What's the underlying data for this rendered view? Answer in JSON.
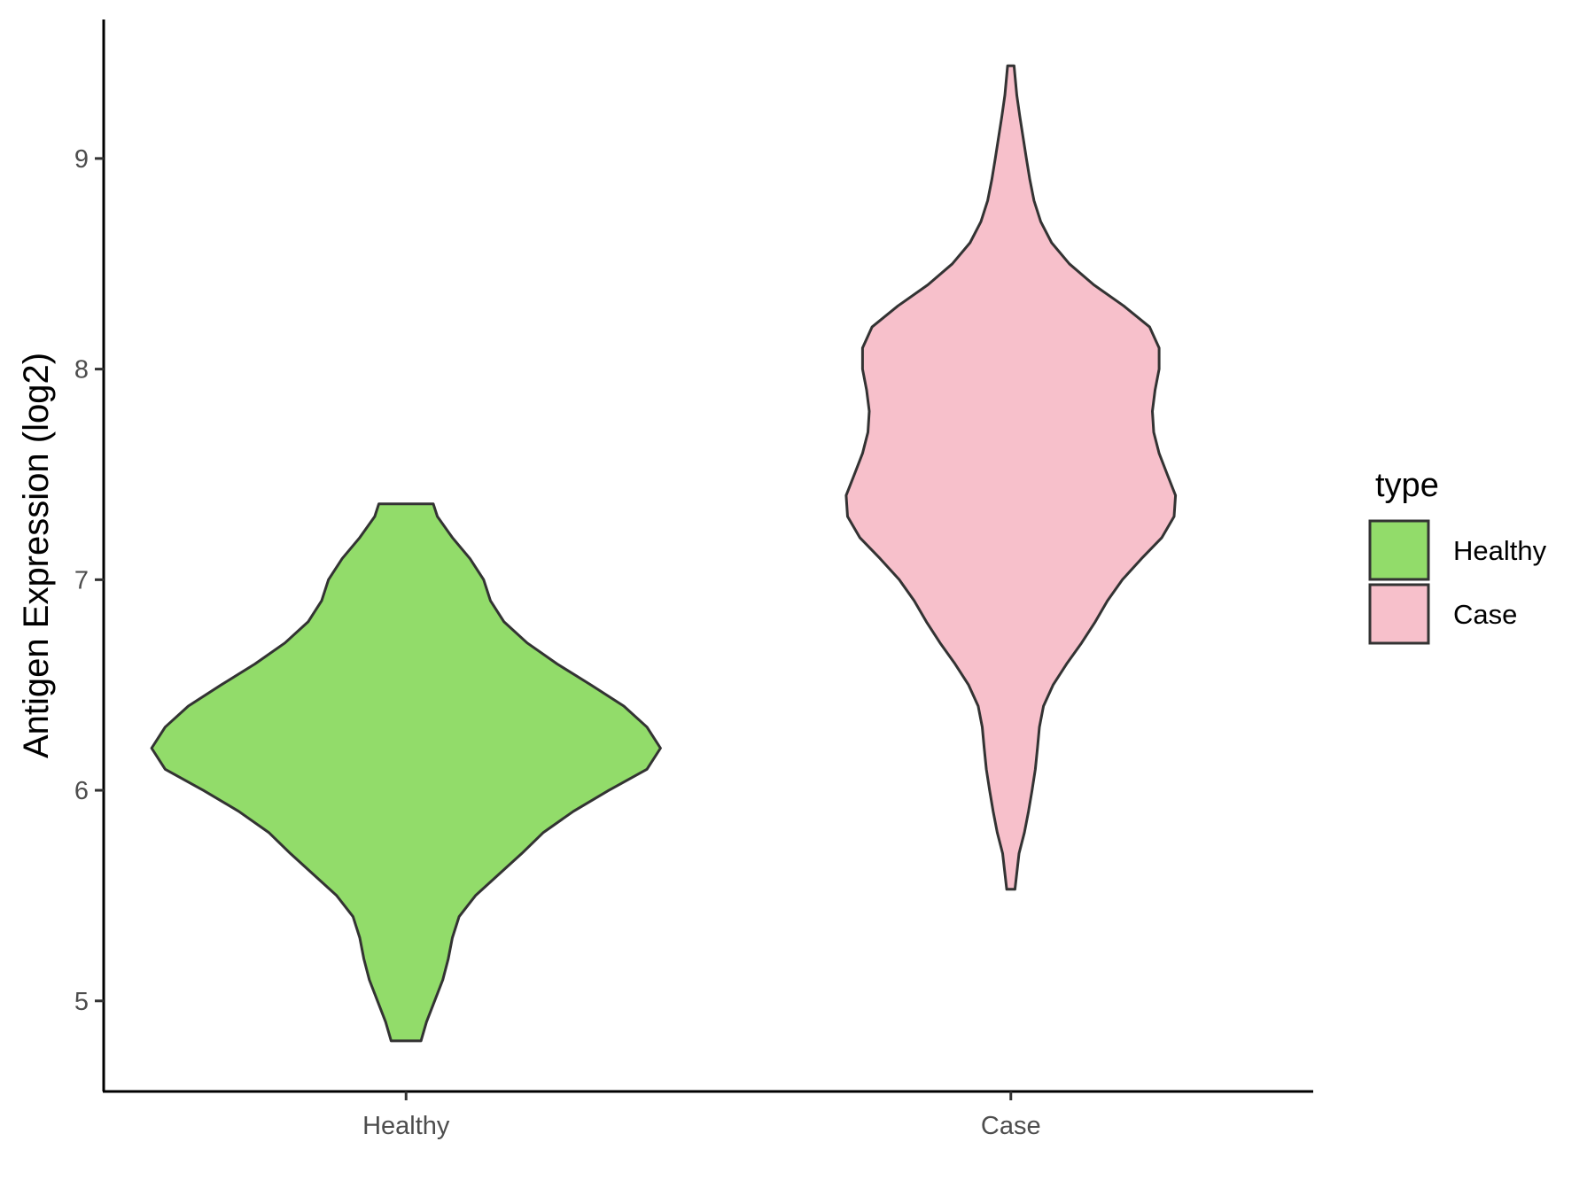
{
  "chart_data": {
    "type": "violin",
    "title": "",
    "xlabel": "",
    "ylabel": "Antigen Expression (log2)",
    "categories": [
      "Healthy",
      "Case"
    ],
    "ylim": [
      4.57,
      9.66
    ],
    "yticks": [
      5,
      6,
      7,
      8,
      9
    ],
    "grid": false,
    "legend": {
      "title": "type",
      "position": "right",
      "entries": [
        "Healthy",
        "Case"
      ]
    },
    "series": [
      {
        "name": "Healthy",
        "color": "#92DC6A",
        "min": 4.81,
        "max": 7.36,
        "density_profile": [
          [
            4.81,
            0.055
          ],
          [
            4.9,
            0.075
          ],
          [
            5.0,
            0.105
          ],
          [
            5.1,
            0.135
          ],
          [
            5.2,
            0.155
          ],
          [
            5.3,
            0.17
          ],
          [
            5.4,
            0.195
          ],
          [
            5.5,
            0.255
          ],
          [
            5.6,
            0.34
          ],
          [
            5.7,
            0.425
          ],
          [
            5.8,
            0.505
          ],
          [
            5.9,
            0.615
          ],
          [
            6.0,
            0.745
          ],
          [
            6.1,
            0.885
          ],
          [
            6.2,
            0.935
          ],
          [
            6.3,
            0.885
          ],
          [
            6.4,
            0.8
          ],
          [
            6.5,
            0.68
          ],
          [
            6.6,
            0.555
          ],
          [
            6.7,
            0.445
          ],
          [
            6.8,
            0.36
          ],
          [
            6.9,
            0.31
          ],
          [
            7.0,
            0.285
          ],
          [
            7.1,
            0.235
          ],
          [
            7.2,
            0.17
          ],
          [
            7.3,
            0.115
          ],
          [
            7.36,
            0.1
          ]
        ]
      },
      {
        "name": "Case",
        "color": "#F7C0CB",
        "min": 5.53,
        "max": 9.44,
        "density_profile": [
          [
            5.53,
            0.015
          ],
          [
            5.7,
            0.03
          ],
          [
            5.8,
            0.05
          ],
          [
            5.9,
            0.065
          ],
          [
            6.0,
            0.078
          ],
          [
            6.1,
            0.09
          ],
          [
            6.2,
            0.098
          ],
          [
            6.3,
            0.105
          ],
          [
            6.4,
            0.12
          ],
          [
            6.5,
            0.155
          ],
          [
            6.6,
            0.205
          ],
          [
            6.7,
            0.26
          ],
          [
            6.8,
            0.31
          ],
          [
            6.9,
            0.355
          ],
          [
            7.0,
            0.41
          ],
          [
            7.1,
            0.48
          ],
          [
            7.2,
            0.555
          ],
          [
            7.3,
            0.6
          ],
          [
            7.4,
            0.605
          ],
          [
            7.5,
            0.575
          ],
          [
            7.6,
            0.545
          ],
          [
            7.7,
            0.525
          ],
          [
            7.8,
            0.52
          ],
          [
            7.9,
            0.53
          ],
          [
            8.0,
            0.545
          ],
          [
            8.1,
            0.545
          ],
          [
            8.2,
            0.51
          ],
          [
            8.3,
            0.415
          ],
          [
            8.4,
            0.305
          ],
          [
            8.5,
            0.215
          ],
          [
            8.6,
            0.15
          ],
          [
            8.7,
            0.11
          ],
          [
            8.8,
            0.085
          ],
          [
            8.9,
            0.07
          ],
          [
            9.0,
            0.057
          ],
          [
            9.1,
            0.045
          ],
          [
            9.2,
            0.033
          ],
          [
            9.3,
            0.022
          ],
          [
            9.44,
            0.012
          ]
        ]
      }
    ]
  }
}
